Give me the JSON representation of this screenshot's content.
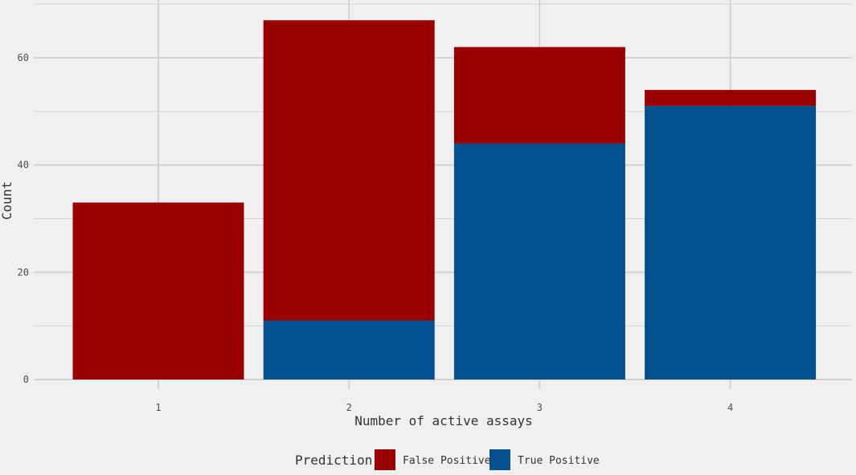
{
  "chart_data": {
    "type": "bar",
    "stacked": true,
    "title": "",
    "xlabel": "Number of active assays",
    "ylabel": "Count",
    "categories": [
      "1",
      "2",
      "3",
      "4"
    ],
    "series": [
      {
        "name": "True Positive",
        "values": [
          0,
          11,
          44,
          51
        ]
      },
      {
        "name": "False Positive",
        "values": [
          33,
          56,
          18,
          3
        ]
      }
    ],
    "ylim": [
      0,
      70
    ],
    "yticks": [
      "0",
      "20",
      "40",
      "60"
    ],
    "grid": true,
    "legend": {
      "title": "Prediction",
      "position": "bottom",
      "entries": [
        "False Positive",
        "True Positive"
      ]
    }
  },
  "colors": {
    "False Positive": "#990000",
    "True Positive": "#03508f",
    "background": "#f0f0f0",
    "grid": "#d2d2d2"
  }
}
